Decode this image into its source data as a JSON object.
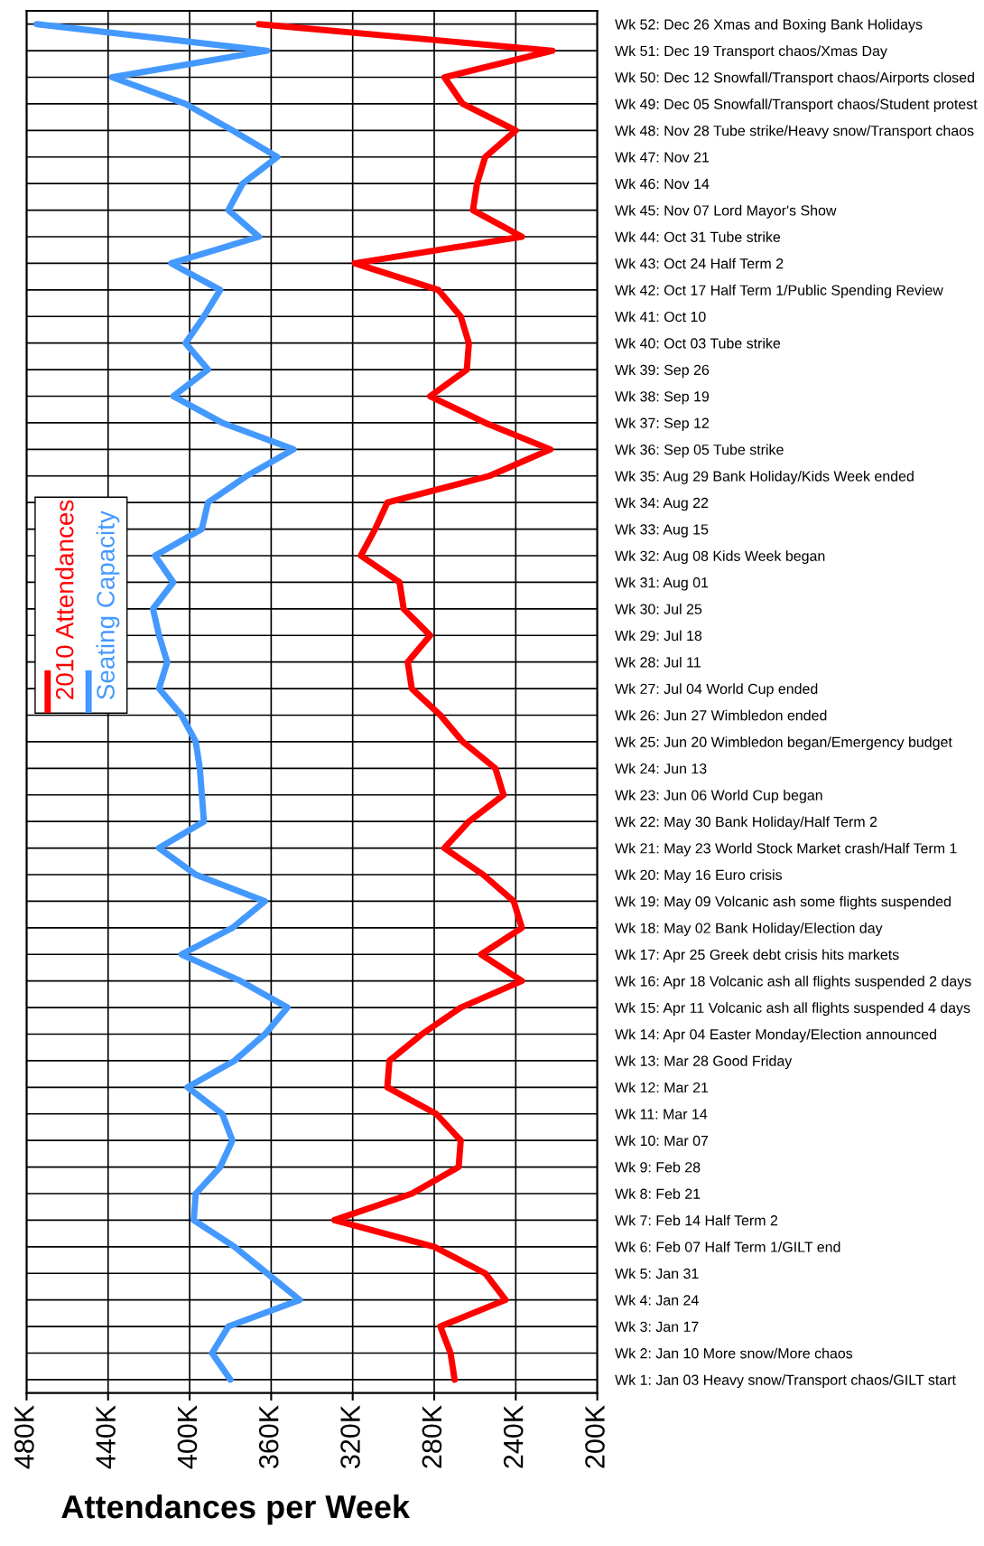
{
  "chart_data": {
    "type": "line",
    "orientation": "horizontal",
    "xlabel": "Attendances per Week",
    "categories": [
      "Wk 52: Dec 26 Xmas and Boxing Bank Holidays",
      "Wk 51: Dec 19 Transport chaos/Xmas Day",
      "Wk 50: Dec 12 Snowfall/Transport chaos/Airports closed",
      "Wk 49: Dec 05 Snowfall/Transport chaos/Student protest",
      "Wk 48: Nov 28 Tube strike/Heavy snow/Transport chaos",
      "Wk 47: Nov 21",
      "Wk 46: Nov 14",
      "Wk 45: Nov 07 Lord Mayor's Show",
      "Wk 44: Oct 31 Tube strike",
      "Wk 43: Oct 24 Half Term 2",
      "Wk 42: Oct 17 Half Term 1/Public Spending Review",
      "Wk 41: Oct 10",
      "Wk 40: Oct 03 Tube strike",
      "Wk 39: Sep 26",
      "Wk 38: Sep 19",
      "Wk 37: Sep 12",
      "Wk 36: Sep 05 Tube strike",
      "Wk 35: Aug 29 Bank Holiday/Kids Week ended",
      "Wk 34: Aug 22",
      "Wk 33: Aug 15",
      "Wk 32: Aug 08 Kids Week began",
      "Wk 31: Aug 01",
      "Wk 30: Jul 25",
      "Wk 29: Jul 18",
      "Wk 28: Jul 11",
      "Wk 27: Jul 04 World Cup ended",
      "Wk 26: Jun 27 Wimbledon ended",
      "Wk 25: Jun 20 Wimbledon began/Emergency budget",
      "Wk 24: Jun 13",
      "Wk 23: Jun 06 World Cup began",
      "Wk 22: May 30 Bank Holiday/Half Term 2",
      "Wk 21: May 23 World Stock Market crash/Half Term 1",
      "Wk 20: May 16 Euro crisis",
      "Wk 19: May 09 Volcanic ash some flights suspended",
      "Wk 18: May 02 Bank Holiday/Election day",
      "Wk 17: Apr 25 Greek debt crisis hits markets",
      "Wk 16: Apr 18 Volcanic ash all flights suspended 2 days",
      "Wk 15: Apr 11 Volcanic ash all flights suspended 4 days",
      "Wk 14: Apr 04 Easter Monday/Election announced",
      "Wk 13: Mar 28 Good Friday",
      "Wk 12: Mar 21",
      "Wk 11: Mar 14",
      "Wk 10: Mar 07",
      "Wk 9: Feb 28",
      "Wk 8: Feb 21",
      "Wk 7: Feb 14 Half Term 2",
      "Wk 6: Feb 07 Half Term 1/GILT end",
      "Wk 5: Jan 31",
      "Wk 4: Jan 24",
      "Wk 3: Jan 17",
      "Wk 2: Jan 10 More snow/More chaos",
      "Wk 1: Jan 03 Heavy snow/Transport chaos/GILT start"
    ],
    "series": [
      {
        "name": "2010 Attendances",
        "color": "#ff0000",
        "values": [
          366,
          222,
          275,
          266,
          240,
          255,
          259,
          261,
          237,
          319,
          278,
          267,
          263,
          264,
          282,
          255,
          223,
          253,
          303,
          309,
          316,
          297,
          295,
          282,
          293,
          291,
          277,
          266,
          250,
          246,
          263,
          275,
          256,
          241,
          237,
          257,
          237,
          267,
          286,
          302,
          303,
          279,
          267,
          268,
          291,
          329,
          280,
          255,
          245,
          277,
          272,
          270
        ]
      },
      {
        "name": "Seating Capacity",
        "color": "#4499ff",
        "values": [
          475,
          362,
          438,
          402,
          379,
          357,
          374,
          381,
          366,
          409,
          385,
          393,
          402,
          391,
          408,
          384,
          349,
          372,
          391,
          394,
          417,
          408,
          418,
          415,
          411,
          415,
          404,
          397,
          395,
          394,
          393,
          415,
          397,
          363,
          379,
          404,
          375,
          352,
          363,
          378,
          401,
          384,
          379,
          385,
          397,
          398,
          378,
          362,
          346,
          381,
          389,
          380
        ]
      }
    ],
    "xlim": [
      480,
      200
    ],
    "xticks": [
      {
        "value": 480,
        "label": "480K"
      },
      {
        "value": 440,
        "label": "440K"
      },
      {
        "value": 400,
        "label": "400K"
      },
      {
        "value": 360,
        "label": "360K"
      },
      {
        "value": 320,
        "label": "320K"
      },
      {
        "value": 280,
        "label": "280K"
      },
      {
        "value": 240,
        "label": "240K"
      },
      {
        "value": 200,
        "label": "200K"
      }
    ],
    "grid": true,
    "legend": "left",
    "marker": "none",
    "line_style": "solid"
  }
}
